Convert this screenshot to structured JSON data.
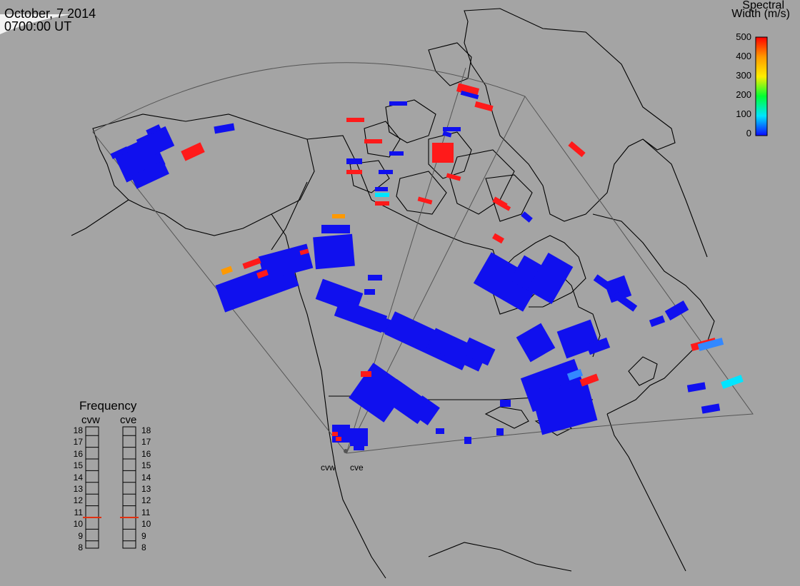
{
  "header": {
    "date": "October, 7 2014",
    "time": "0700:00 UT"
  },
  "colorbar": {
    "title_line1": "Spectral",
    "title_line2": "Width (m/s)",
    "ticks": [
      "500",
      "400",
      "300",
      "200",
      "100",
      "0"
    ],
    "colors": [
      "#0a0aff",
      "#00e5ff",
      "#00ff33",
      "#ffee00",
      "#ff9900",
      "#ff0000"
    ]
  },
  "frequency": {
    "title": "Frequency",
    "left_label": "cvw",
    "right_label": "cve",
    "scale": [
      "18",
      "17",
      "16",
      "15",
      "14",
      "13",
      "12",
      "11",
      "10",
      "9",
      "8"
    ],
    "cvw_value_mhz": 10.5,
    "cve_value_mhz": 10.5
  },
  "radars": {
    "west": "cvw",
    "east": "cve"
  },
  "colors": {
    "background": "#a4a4a4",
    "scatter_low": "#1010ee",
    "scatter_high": "#ff1a1a",
    "frequency_marker": "#e03010"
  }
}
